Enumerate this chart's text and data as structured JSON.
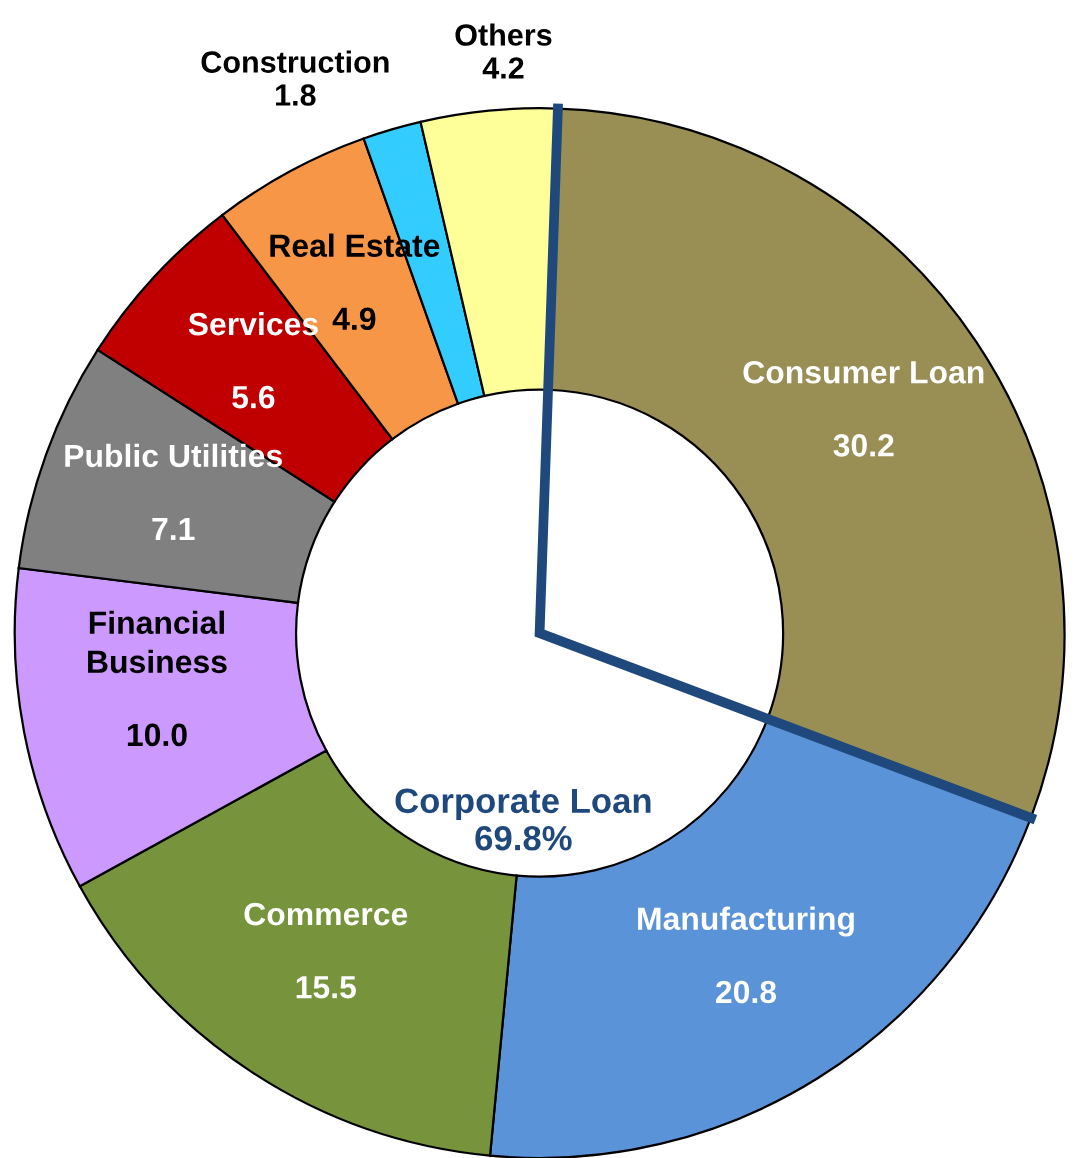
{
  "chart_data": {
    "type": "donut",
    "categories": [
      "Consumer Loan",
      "Manufacturing",
      "Commerce",
      "Financial Business",
      "Public Utilities",
      "Services",
      "Real Estate",
      "Construction",
      "Others"
    ],
    "values": [
      30.2,
      20.8,
      15.5,
      10.0,
      7.1,
      5.6,
      4.9,
      1.8,
      4.2
    ],
    "value_labels": [
      "30.2",
      "20.8",
      "15.5",
      "10.0",
      "7.1",
      "5.6",
      "4.9",
      "1.8",
      "4.2"
    ],
    "colors": [
      "#998f55",
      "#5b93d9",
      "#77933c",
      "#cc99ff",
      "#808080",
      "#c00000",
      "#f79646",
      "#33ccff",
      "#ffff99"
    ],
    "annotations": [
      "Corporate Loan\n69.8%"
    ]
  }
}
